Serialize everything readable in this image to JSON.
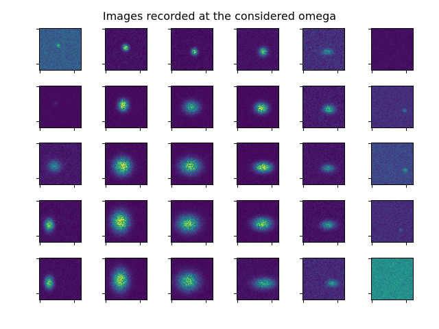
{
  "chart_data": {
    "type": "heatmap",
    "title": "Images recorded at the considered omega",
    "grid": {
      "rows": 5,
      "cols": 6
    },
    "colormap": "viridis",
    "x_ticks": "unlabeled",
    "y_ticks": "unlabeled",
    "panels": [
      {
        "row": 0,
        "col": 0,
        "background": 0.3,
        "noise": 0.1,
        "blobs": [
          {
            "cx": 0.45,
            "cy": 0.4,
            "rx": 0.05,
            "ry": 0.05,
            "peak": 0.4
          }
        ]
      },
      {
        "row": 0,
        "col": 1,
        "background": 0.05,
        "noise": 0.05,
        "blobs": [
          {
            "cx": 0.48,
            "cy": 0.45,
            "rx": 0.09,
            "ry": 0.09,
            "peak": 0.75
          }
        ]
      },
      {
        "row": 0,
        "col": 2,
        "background": 0.04,
        "noise": 0.04,
        "blobs": [
          {
            "cx": 0.55,
            "cy": 0.55,
            "rx": 0.09,
            "ry": 0.1,
            "peak": 0.7
          }
        ]
      },
      {
        "row": 0,
        "col": 3,
        "background": 0.05,
        "noise": 0.04,
        "blobs": [
          {
            "cx": 0.62,
            "cy": 0.55,
            "rx": 0.12,
            "ry": 0.12,
            "peak": 0.7
          }
        ]
      },
      {
        "row": 0,
        "col": 4,
        "background": 0.14,
        "noise": 0.08,
        "blobs": [
          {
            "cx": 0.58,
            "cy": 0.55,
            "rx": 0.16,
            "ry": 0.09,
            "peak": 0.35
          }
        ]
      },
      {
        "row": 0,
        "col": 5,
        "background": 0.04,
        "noise": 0.03,
        "blobs": []
      },
      {
        "row": 1,
        "col": 0,
        "background": 0.03,
        "noise": 0.02,
        "blobs": [
          {
            "cx": 0.38,
            "cy": 0.4,
            "rx": 0.08,
            "ry": 0.08,
            "peak": 0.06
          }
        ]
      },
      {
        "row": 1,
        "col": 1,
        "background": 0.03,
        "noise": 0.03,
        "blobs": [
          {
            "cx": 0.42,
            "cy": 0.45,
            "rx": 0.14,
            "ry": 0.16,
            "peak": 0.85
          }
        ]
      },
      {
        "row": 1,
        "col": 2,
        "background": 0.03,
        "noise": 0.03,
        "blobs": [
          {
            "cx": 0.48,
            "cy": 0.5,
            "rx": 0.22,
            "ry": 0.18,
            "peak": 0.55
          }
        ]
      },
      {
        "row": 1,
        "col": 3,
        "background": 0.03,
        "noise": 0.03,
        "blobs": [
          {
            "cx": 0.58,
            "cy": 0.52,
            "rx": 0.18,
            "ry": 0.15,
            "peak": 0.8
          }
        ]
      },
      {
        "row": 1,
        "col": 4,
        "background": 0.08,
        "noise": 0.06,
        "blobs": [
          {
            "cx": 0.62,
            "cy": 0.55,
            "rx": 0.16,
            "ry": 0.12,
            "peak": 0.6
          }
        ]
      },
      {
        "row": 1,
        "col": 5,
        "background": 0.14,
        "noise": 0.06,
        "blobs": [
          {
            "cx": 0.78,
            "cy": 0.58,
            "rx": 0.06,
            "ry": 0.06,
            "peak": 0.25
          }
        ]
      },
      {
        "row": 2,
        "col": 0,
        "background": 0.07,
        "noise": 0.05,
        "blobs": [
          {
            "cx": 0.35,
            "cy": 0.55,
            "rx": 0.18,
            "ry": 0.16,
            "peak": 0.4
          }
        ]
      },
      {
        "row": 2,
        "col": 1,
        "background": 0.03,
        "noise": 0.03,
        "blobs": [
          {
            "cx": 0.4,
            "cy": 0.55,
            "rx": 0.24,
            "ry": 0.24,
            "peak": 0.85
          }
        ]
      },
      {
        "row": 2,
        "col": 2,
        "background": 0.03,
        "noise": 0.03,
        "blobs": [
          {
            "cx": 0.45,
            "cy": 0.55,
            "rx": 0.28,
            "ry": 0.22,
            "peak": 0.7
          }
        ]
      },
      {
        "row": 2,
        "col": 3,
        "background": 0.03,
        "noise": 0.03,
        "blobs": [
          {
            "cx": 0.62,
            "cy": 0.58,
            "rx": 0.24,
            "ry": 0.14,
            "peak": 0.85
          }
        ]
      },
      {
        "row": 2,
        "col": 4,
        "background": 0.06,
        "noise": 0.05,
        "blobs": [
          {
            "cx": 0.6,
            "cy": 0.6,
            "rx": 0.18,
            "ry": 0.11,
            "peak": 0.45
          }
        ]
      },
      {
        "row": 2,
        "col": 5,
        "background": 0.22,
        "noise": 0.08,
        "blobs": [
          {
            "cx": 0.8,
            "cy": 0.65,
            "rx": 0.06,
            "ry": 0.06,
            "peak": 0.35
          }
        ]
      },
      {
        "row": 3,
        "col": 0,
        "background": 0.04,
        "noise": 0.04,
        "blobs": [
          {
            "cx": 0.22,
            "cy": 0.58,
            "rx": 0.13,
            "ry": 0.17,
            "peak": 0.75
          }
        ]
      },
      {
        "row": 3,
        "col": 1,
        "background": 0.03,
        "noise": 0.03,
        "blobs": [
          {
            "cx": 0.35,
            "cy": 0.5,
            "rx": 0.24,
            "ry": 0.28,
            "peak": 0.85
          }
        ]
      },
      {
        "row": 3,
        "col": 2,
        "background": 0.03,
        "noise": 0.03,
        "blobs": [
          {
            "cx": 0.4,
            "cy": 0.55,
            "rx": 0.3,
            "ry": 0.24,
            "peak": 0.7
          }
        ]
      },
      {
        "row": 3,
        "col": 3,
        "background": 0.03,
        "noise": 0.03,
        "blobs": [
          {
            "cx": 0.6,
            "cy": 0.55,
            "rx": 0.26,
            "ry": 0.17,
            "peak": 0.75
          }
        ]
      },
      {
        "row": 3,
        "col": 4,
        "background": 0.05,
        "noise": 0.05,
        "blobs": [
          {
            "cx": 0.6,
            "cy": 0.58,
            "rx": 0.2,
            "ry": 0.12,
            "peak": 0.5
          }
        ]
      },
      {
        "row": 3,
        "col": 5,
        "background": 0.13,
        "noise": 0.06,
        "blobs": [
          {
            "cx": 0.7,
            "cy": 0.7,
            "rx": 0.05,
            "ry": 0.05,
            "peak": 0.2
          }
        ]
      },
      {
        "row": 4,
        "col": 0,
        "background": 0.04,
        "noise": 0.04,
        "blobs": [
          {
            "cx": 0.22,
            "cy": 0.58,
            "rx": 0.12,
            "ry": 0.17,
            "peak": 0.75
          }
        ]
      },
      {
        "row": 4,
        "col": 1,
        "background": 0.03,
        "noise": 0.03,
        "blobs": [
          {
            "cx": 0.35,
            "cy": 0.52,
            "rx": 0.22,
            "ry": 0.3,
            "peak": 0.8
          }
        ]
      },
      {
        "row": 4,
        "col": 2,
        "background": 0.03,
        "noise": 0.03,
        "blobs": [
          {
            "cx": 0.4,
            "cy": 0.55,
            "rx": 0.3,
            "ry": 0.26,
            "peak": 0.65
          }
        ]
      },
      {
        "row": 4,
        "col": 3,
        "background": 0.05,
        "noise": 0.04,
        "blobs": [
          {
            "cx": 0.65,
            "cy": 0.6,
            "rx": 0.3,
            "ry": 0.15,
            "peak": 0.55
          }
        ]
      },
      {
        "row": 4,
        "col": 4,
        "background": 0.12,
        "noise": 0.07,
        "blobs": [
          {
            "cx": 0.7,
            "cy": 0.6,
            "rx": 0.16,
            "ry": 0.09,
            "peak": 0.45
          }
        ]
      },
      {
        "row": 4,
        "col": 5,
        "background": 0.5,
        "noise": 0.12,
        "blobs": []
      }
    ]
  }
}
